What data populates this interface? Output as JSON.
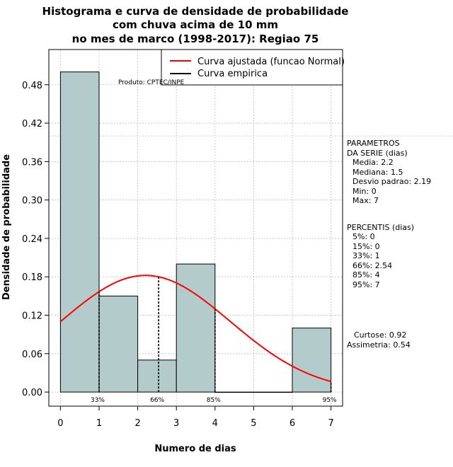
{
  "chart_data": {
    "type": "bar",
    "title": [
      "Histograma e curva de densidade de probabilidade",
      "com chuva acima de 10 mm",
      "no mes de marco (1998-2017): Regiao 75"
    ],
    "xlabel": "Numero de dias",
    "ylabel": "Densidade de probabilidade",
    "xlim": [
      -0.3,
      7.3
    ],
    "ylim": [
      -0.022,
      0.535
    ],
    "xticks": [
      0,
      1,
      2,
      3,
      4,
      5,
      6,
      7
    ],
    "yticks": [
      0.0,
      0.06,
      0.12,
      0.18,
      0.24,
      0.3,
      0.36,
      0.42,
      0.48
    ],
    "ytick_labels": [
      "0.00",
      "0.06",
      "0.12",
      "0.18",
      "0.24",
      "0.30",
      "0.36",
      "0.42",
      "0.48"
    ],
    "bins": [
      {
        "from": 0,
        "to": 1,
        "density": 0.5
      },
      {
        "from": 1,
        "to": 2,
        "density": 0.15
      },
      {
        "from": 2,
        "to": 3,
        "density": 0.05
      },
      {
        "from": 3,
        "to": 4,
        "density": 0.2
      },
      {
        "from": 4,
        "to": 5,
        "density": 0.0
      },
      {
        "from": 5,
        "to": 6,
        "density": 0.0
      },
      {
        "from": 6,
        "to": 7,
        "density": 0.1
      }
    ],
    "normal_fit": {
      "mean": 2.2,
      "sd": 2.19,
      "x_from": 0,
      "x_to": 7
    },
    "percentile_lines": [
      {
        "x": 1,
        "label": "33%"
      },
      {
        "x": 2.54,
        "label": "66%"
      },
      {
        "x": 4,
        "label": "85%"
      },
      {
        "x": 7,
        "label": "95%"
      }
    ],
    "reference_line_y": 0.4,
    "colors": {
      "bar_fill": "#b4cbcb",
      "curve": "#ff0000",
      "grid": "#bebebe",
      "axis": "#000000"
    },
    "legend": {
      "placement": "top-right",
      "entries": [
        "Curva ajustada (funcao Normal)",
        "Curva empirica"
      ]
    },
    "annotation": "Produto: CPTEC/INPE"
  },
  "side_panel": {
    "params_title_1": "PARAMETROS",
    "params_title_2": "DA SERIE (dias)",
    "media": "Media: 2.2",
    "mediana": "Mediana: 1.5",
    "desvio": "Desvio padrao: 2.19",
    "min": "Min: 0",
    "max": "Max: 7",
    "perc_title": "PERCENTIS (dias)",
    "p5": "5%: 0",
    "p15": "15%: 0",
    "p33": "33%: 1",
    "p66": "66%: 2.54",
    "p85": "85%: 4",
    "p95": "95%: 7",
    "curtose": "Curtose: 0.92",
    "assimetria": "Assimetria: 0.54"
  }
}
